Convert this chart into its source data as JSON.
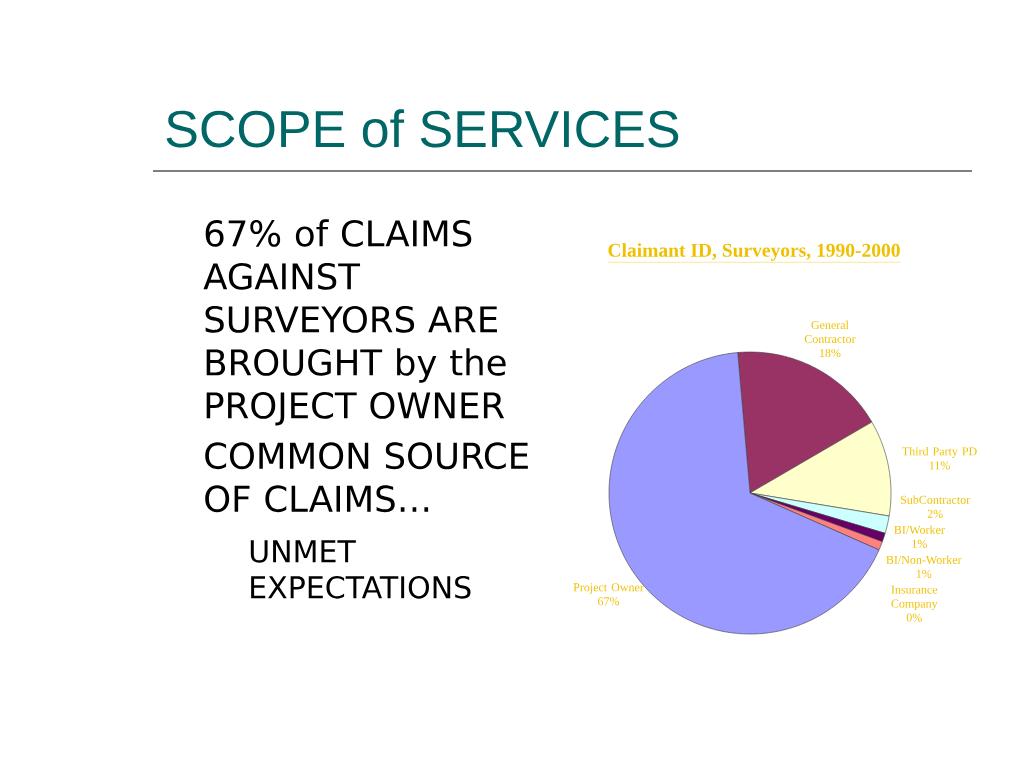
{
  "chart_data": {
    "type": "pie",
    "title": "SCOPE of SERVICES",
    "subtitle": "Claimant ID, Surveyors, 1990-2000",
    "categories": [
      "General Contractor",
      "Third Party PD",
      "SubContractor",
      "BI/Worker",
      "BI/Non-Worker",
      "Insurance Company",
      "Project Owner"
    ],
    "values": [
      18,
      11,
      2,
      1,
      1,
      0,
      67
    ],
    "value_labels": [
      "18%",
      "11%",
      "2%",
      "1%",
      "1%",
      "0%",
      "67%"
    ],
    "colors": [
      "#993366",
      "#ffffcc",
      "#ccffff",
      "#660066",
      "#ff8080",
      "#0066cc",
      "#9999ff"
    ],
    "annotations": [
      "67% of CLAIMS AGAINST SURVEYORS ARE BROUGHT by the PROJECT OWNER",
      "COMMON SOURCE OF CLAIMS…",
      "UNMET EXPECTATIONS"
    ]
  }
}
